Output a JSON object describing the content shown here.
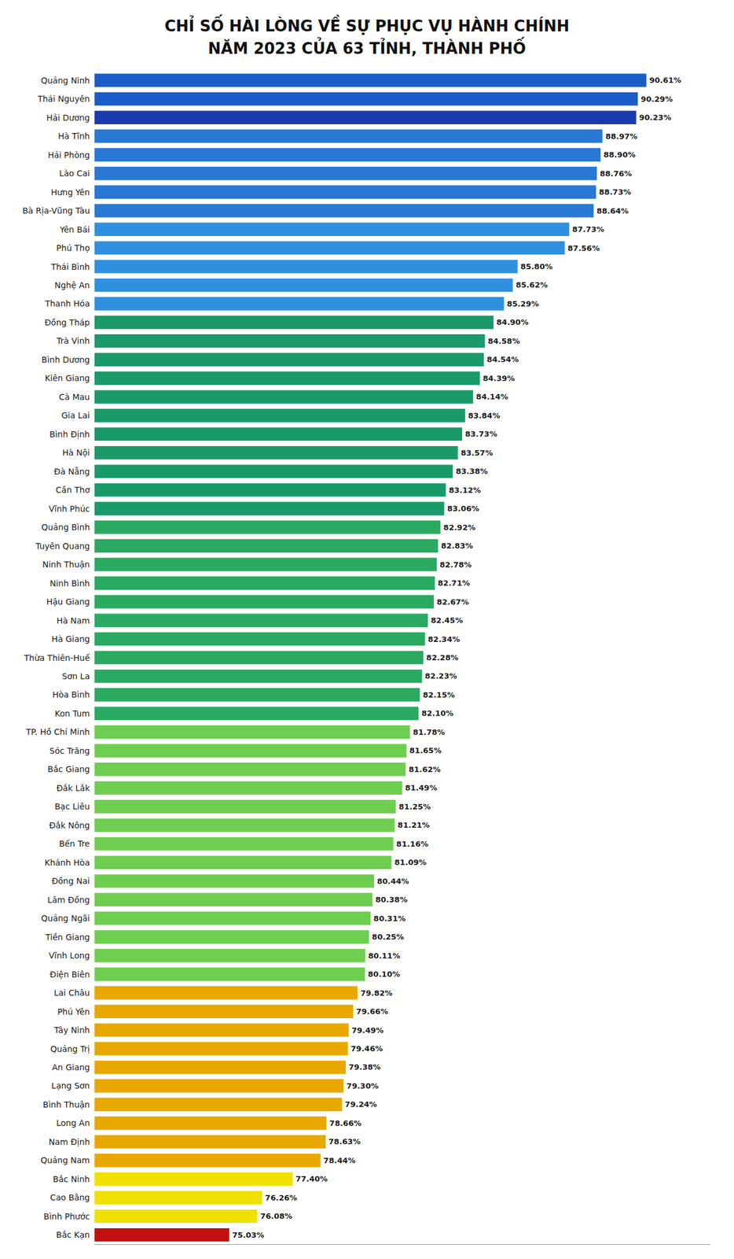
{
  "chart_data": {
    "type": "bar",
    "orientation": "horizontal",
    "title": "CHỈ SỐ HÀI LÒNG VỀ SỰ PHỤC VỤ HÀNH CHÍNH\nNĂM 2023 CỦA 63 TỈNH, THÀNH PHỐ",
    "categories": [
      "Quảng Ninh",
      "Thái Nguyên",
      "Hải Dương",
      "Hà Tĩnh",
      "Hải Phòng",
      "Lào Cai",
      "Hưng Yên",
      "Bà Rịa-Vũng Tàu",
      "Yên Bái",
      "Phú Thọ",
      "Thái Bình",
      "Nghệ An",
      "Thanh Hóa",
      "Đồng Tháp",
      "Trà Vinh",
      "Bình Dương",
      "Kiên Giang",
      "Cà Mau",
      "Gia Lai",
      "Bình Định",
      "Hà Nội",
      "Đà Nẵng",
      "Cần Thơ",
      "Vĩnh Phúc",
      "Quảng Bình",
      "Tuyên Quang",
      "Ninh Thuận",
      "Ninh Bình",
      "Hậu Giang",
      "Hà Nam",
      "Hà Giang",
      "Thừa Thiên-Huế",
      "Sơn La",
      "Hòa Bình",
      "Kon Tum",
      "TP. Hồ Chí Minh",
      "Sóc Trăng",
      "Bắc Giang",
      "Đắk Lắk",
      "Bạc Liêu",
      "Đắk Nông",
      "Bến Tre",
      "Khánh Hòa",
      "Đồng Nai",
      "Lâm Đồng",
      "Quảng Ngãi",
      "Tiền Giang",
      "Vĩnh Long",
      "Điện Biên",
      "Lai Châu",
      "Phú Yên",
      "Tây Ninh",
      "Quảng Trị",
      "An Giang",
      "Lạng Sơn",
      "Bình Thuận",
      "Long An",
      "Nam Định",
      "Quảng Nam",
      "Bắc Ninh",
      "Cao Bằng",
      "Bình Phước",
      "Bắc Kạn"
    ],
    "values": [
      90.61,
      90.29,
      90.23,
      88.97,
      88.9,
      88.76,
      88.73,
      88.64,
      87.73,
      87.56,
      85.8,
      85.62,
      85.29,
      84.9,
      84.58,
      84.54,
      84.39,
      84.14,
      83.84,
      83.73,
      83.57,
      83.38,
      83.12,
      83.06,
      82.92,
      82.83,
      82.78,
      82.71,
      82.67,
      82.45,
      82.34,
      82.28,
      82.23,
      82.15,
      82.1,
      81.78,
      81.65,
      81.62,
      81.49,
      81.25,
      81.21,
      81.16,
      81.09,
      80.44,
      80.38,
      80.31,
      80.25,
      80.11,
      80.1,
      79.82,
      79.66,
      79.49,
      79.46,
      79.38,
      79.3,
      79.24,
      78.66,
      78.63,
      78.44,
      77.4,
      76.26,
      76.08,
      75.03
    ],
    "value_labels": [
      "90.61%",
      "90.29%",
      "90.23%",
      "88.97%",
      "88.90%",
      "88.76%",
      "88.73%",
      "88.64%",
      "87.73%",
      "87.56%",
      "85.80%",
      "85.62%",
      "85.29%",
      "84.90%",
      "84.58%",
      "84.54%",
      "84.39%",
      "84.14%",
      "83.84%",
      "83.73%",
      "83.57%",
      "83.38%",
      "83.12%",
      "83.06%",
      "82.92%",
      "82.83%",
      "82.78%",
      "82.71%",
      "82.67%",
      "82.45%",
      "82.34%",
      "82.28%",
      "82.23%",
      "82.15%",
      "82.10%",
      "81.78%",
      "81.65%",
      "81.62%",
      "81.49%",
      "81.25%",
      "81.21%",
      "81.16%",
      "81.09%",
      "80.44%",
      "80.38%",
      "80.31%",
      "80.25%",
      "80.11%",
      "80.10%",
      "79.82%",
      "79.66%",
      "79.49%",
      "79.46%",
      "79.38%",
      "79.30%",
      "79.24%",
      "78.66%",
      "78.63%",
      "78.44%",
      "77.40%",
      "76.26%",
      "76.08%",
      "75.03%"
    ],
    "colors": [
      "#1a5dc8",
      "#1a5dc8",
      "#1a3ab0",
      "#2878d4",
      "#2878d4",
      "#2878d4",
      "#2878d4",
      "#2878d4",
      "#3090e0",
      "#3090e0",
      "#3090e0",
      "#3090e0",
      "#3090e0",
      "#1a9a6a",
      "#1a9a6a",
      "#1a9a6a",
      "#1a9a6a",
      "#1a9a6a",
      "#1a9a6a",
      "#1a9a6a",
      "#1a9a6a",
      "#1a9a6a",
      "#1a9a6a",
      "#1a9a6a",
      "#2aaa60",
      "#2aaa60",
      "#2aaa60",
      "#2aaa60",
      "#2aaa60",
      "#2aaa60",
      "#2aaa60",
      "#2aaa60",
      "#2aaa60",
      "#2aaa60",
      "#2aaa60",
      "#6ece50",
      "#6ece50",
      "#6ece50",
      "#6ece50",
      "#6ece50",
      "#6ece50",
      "#6ece50",
      "#6ece50",
      "#6ece50",
      "#6ece50",
      "#6ece50",
      "#6ece50",
      "#6ece50",
      "#6ece50",
      "#e8a800",
      "#e8a800",
      "#e8a800",
      "#e8a800",
      "#e8a800",
      "#e8a800",
      "#e8a800",
      "#e8a800",
      "#e8a800",
      "#e8a800",
      "#f0e000",
      "#f0e000",
      "#f0e000",
      "#c01010"
    ],
    "xlim": [
      70,
      93
    ],
    "data_labels": true,
    "tick_labels": "y",
    "grid": false
  }
}
